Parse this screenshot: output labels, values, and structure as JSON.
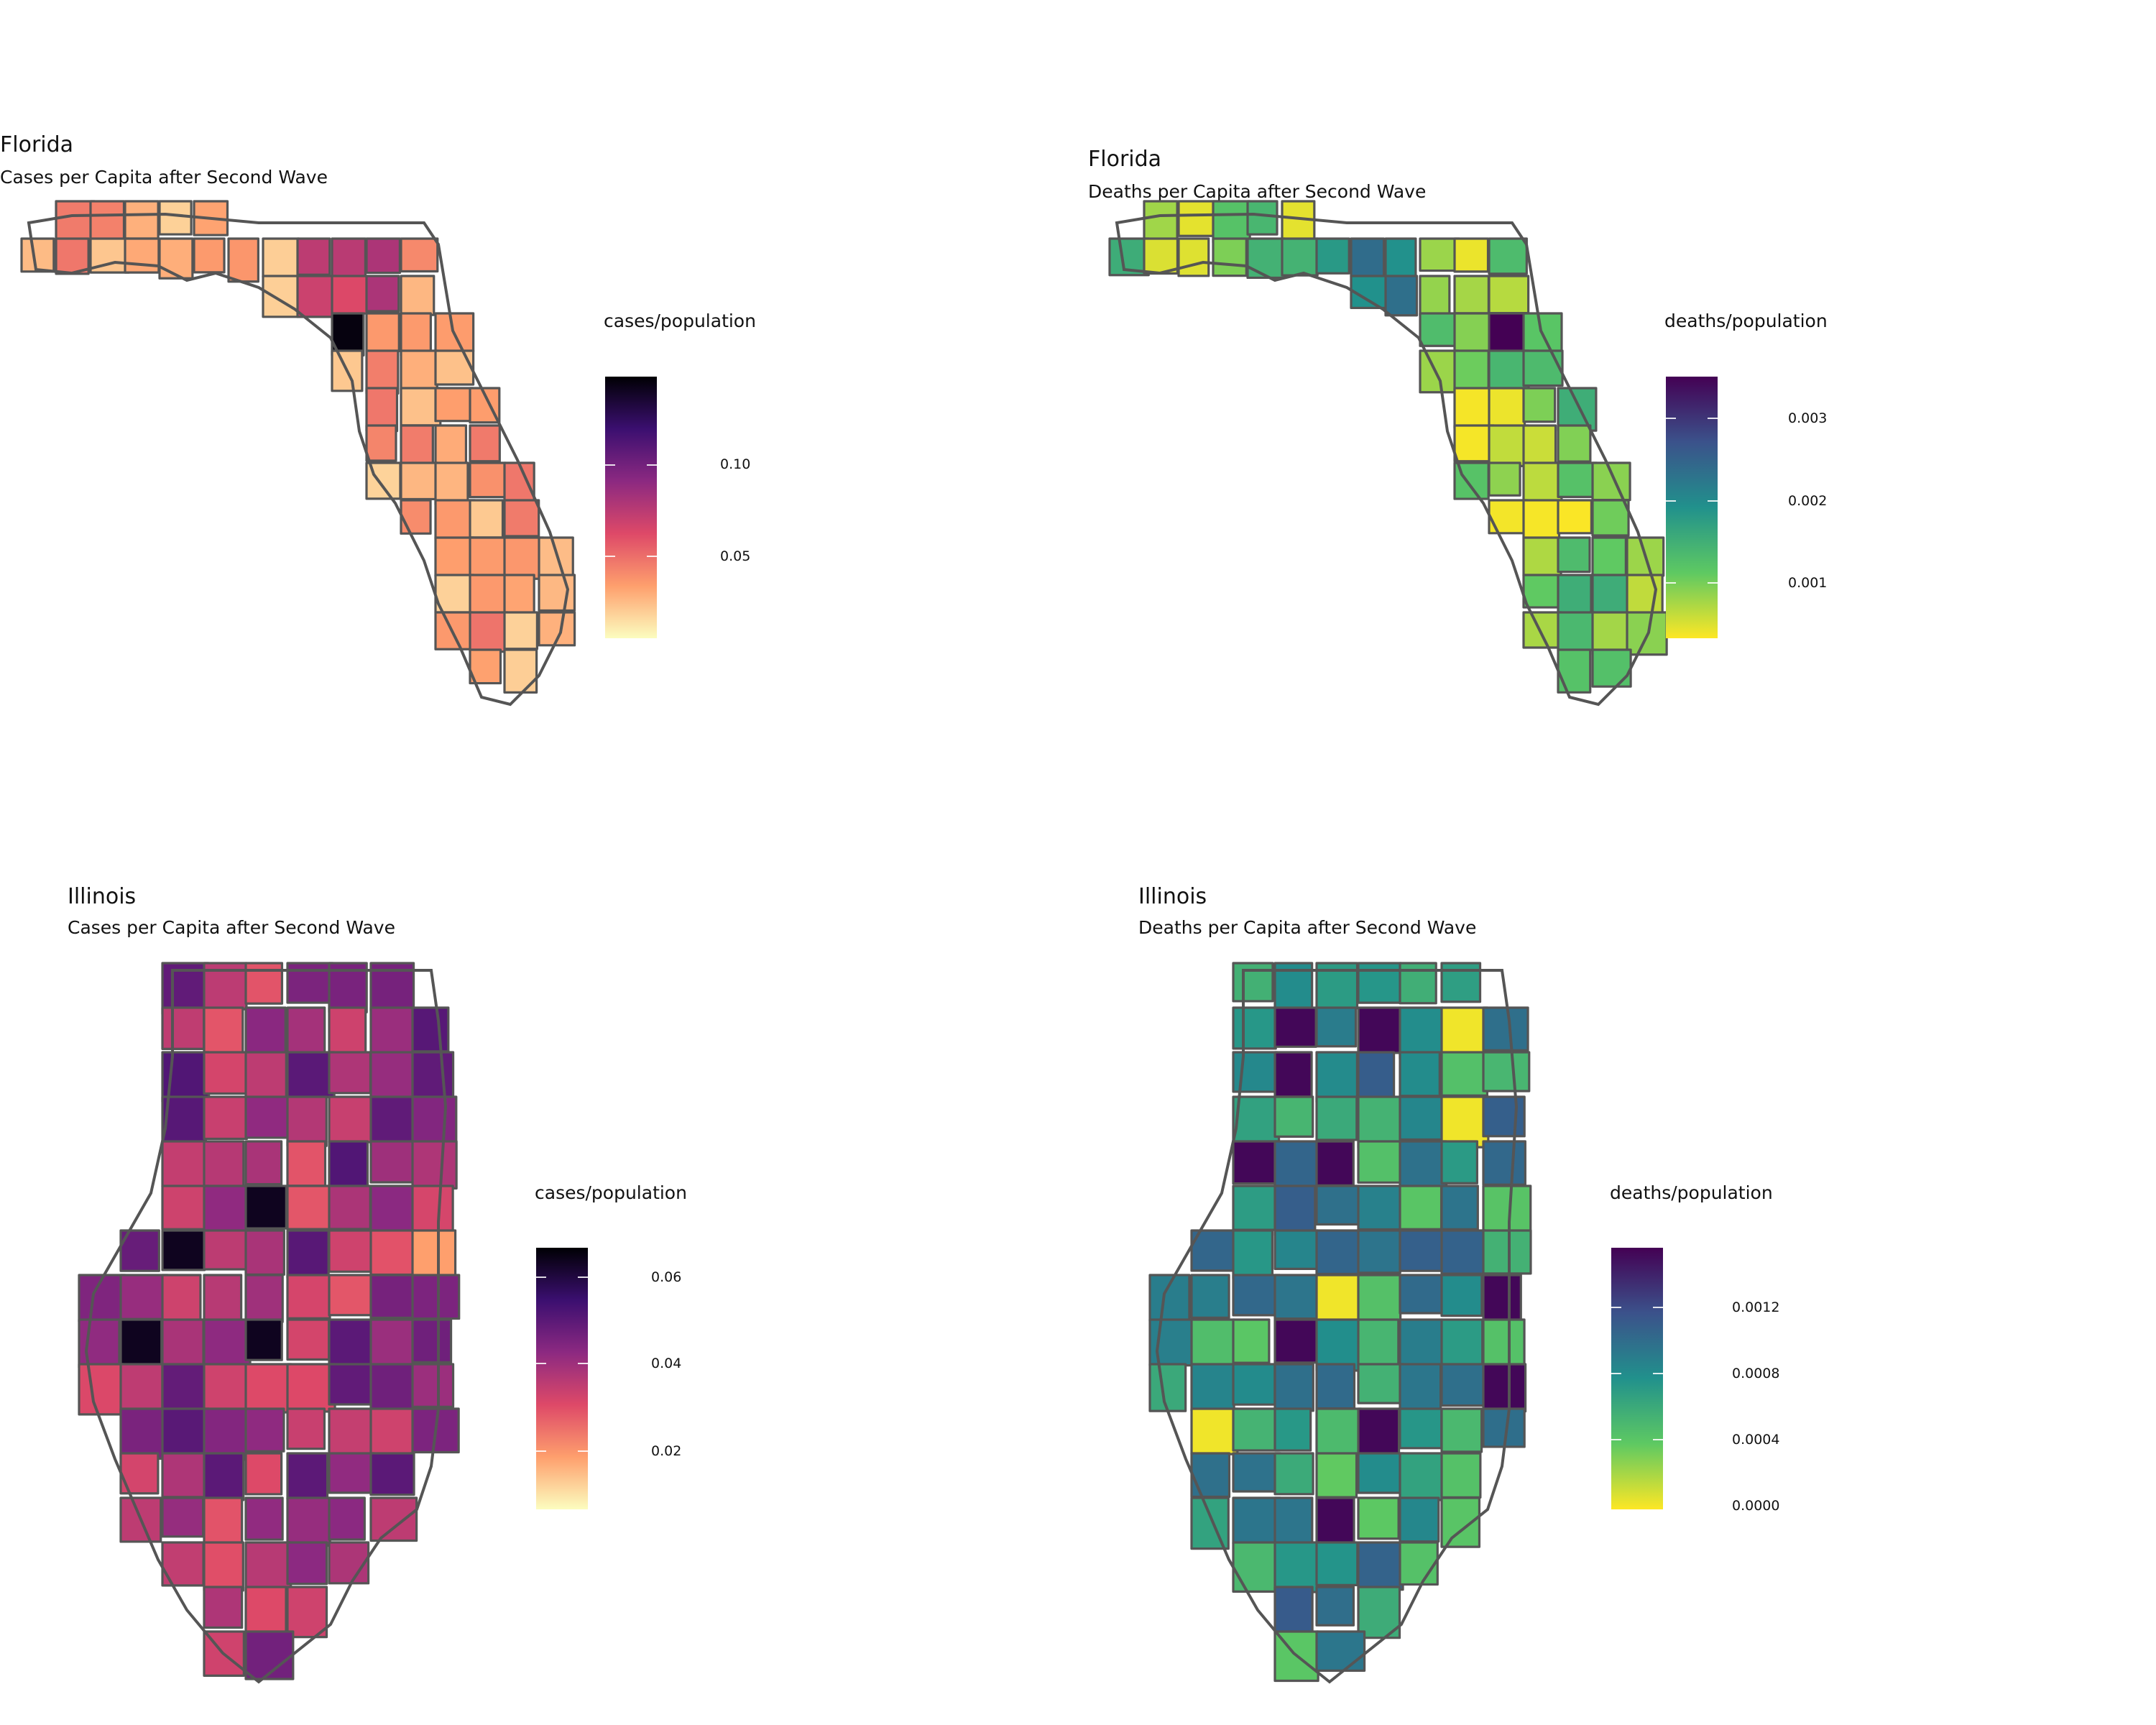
{
  "panels": [
    {
      "id": "fl_cases",
      "title": "Florida",
      "subtitle": "Cases per Capita after Second Wave",
      "legend": {
        "title": "cases/population",
        "palette": "magma",
        "ticks": [
          "0.10",
          "0.05"
        ]
      }
    },
    {
      "id": "fl_deaths",
      "title": "Florida",
      "subtitle": "Deaths per Capita after Second Wave",
      "legend": {
        "title": "deaths/population",
        "palette": "viridis",
        "ticks": [
          "0.003",
          "0.002",
          "0.001"
        ]
      }
    },
    {
      "id": "il_cases",
      "title": "Illinois",
      "subtitle": "Cases per Capita after Second Wave",
      "legend": {
        "title": "cases/population",
        "palette": "magma",
        "ticks": [
          "0.06",
          "0.04",
          "0.02"
        ]
      }
    },
    {
      "id": "il_deaths",
      "title": "Illinois",
      "subtitle": "Deaths per Capita after Second Wave",
      "legend": {
        "title": "deaths/population",
        "palette": "viridis",
        "ticks": [
          "0.0012",
          "0.0008",
          "0.0004",
          "0.0000"
        ]
      }
    }
  ],
  "colors": {
    "county_border": "#555555",
    "magma": [
      "#000004",
      "#3b0f70",
      "#8c2981",
      "#de4968",
      "#fe9f6d",
      "#fcfdbf"
    ],
    "viridis": [
      "#440154",
      "#3b528b",
      "#21918c",
      "#5ec962",
      "#fde725"
    ]
  }
}
